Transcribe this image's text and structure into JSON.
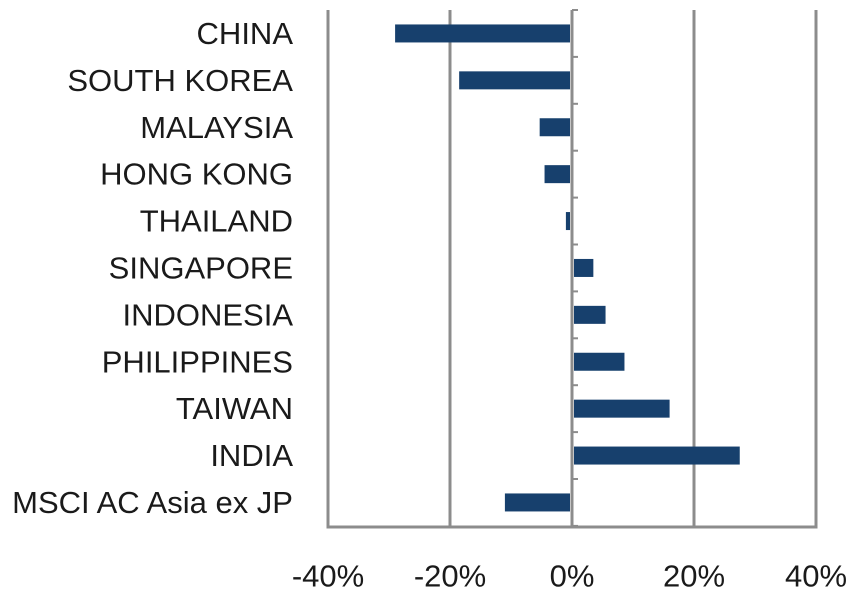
{
  "chart_data": {
    "type": "bar",
    "orientation": "horizontal",
    "categories": [
      "CHINA",
      "SOUTH KOREA",
      "MALAYSIA",
      "HONG KONG",
      "THAILAND",
      "SINGAPORE",
      "INDONESIA",
      "PHILIPPINES",
      "TAIWAN",
      "INDIA",
      "MSCI AC Asia ex JP"
    ],
    "values": [
      -29,
      -18.5,
      -5.3,
      -4.5,
      -1,
      3.5,
      5.5,
      8.6,
      16,
      27.5,
      -11
    ],
    "xlim": [
      -40,
      40
    ],
    "xticks": [
      -40,
      -20,
      0,
      20,
      40
    ],
    "xtick_labels": [
      "-40%",
      "-20%",
      "0%",
      "20%",
      "40%"
    ],
    "grid": "vertical",
    "bar_color": "#17406d",
    "grid_color": "#8c8c8c"
  }
}
